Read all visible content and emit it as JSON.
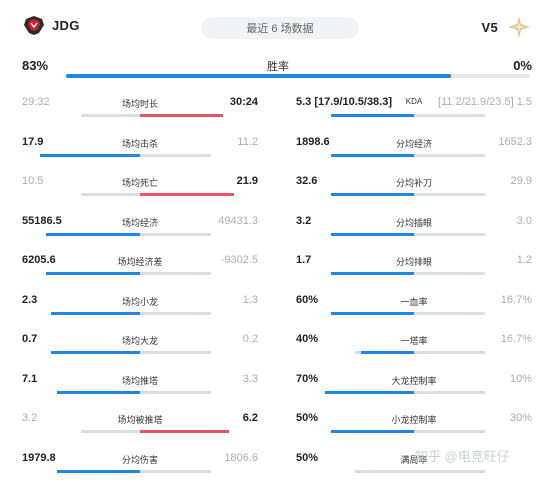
{
  "header": {
    "left_team": "JDG",
    "right_team": "V5",
    "period": "最近 6 场数据"
  },
  "winrate": {
    "left": "83%",
    "label": "胜率",
    "right": "0%",
    "left_fraction": 0.83
  },
  "colors": {
    "accent_blue": "#1f86e6",
    "accent_red": "#e85466",
    "track": "#dadde2"
  },
  "left_stats": [
    {
      "label": "场均时长",
      "left": "29:32",
      "right": "30:24",
      "bar_left": 0.0,
      "bar_right": 0.7,
      "right_color": "red",
      "left_muted": true,
      "right_muted": false
    },
    {
      "label": "场均击杀",
      "left": "17.9",
      "right": "11.2",
      "bar_left": 0.85,
      "bar_right": 0.0,
      "left_muted": false,
      "right_muted": true
    },
    {
      "label": "场均死亡",
      "left": "10.5",
      "right": "21.9",
      "bar_left": 0.0,
      "bar_right": 0.8,
      "right_color": "red",
      "left_muted": true,
      "right_muted": false
    },
    {
      "label": "场均经济",
      "left": "55186.5",
      "right": "49431.3",
      "bar_left": 0.8,
      "bar_right": 0.0,
      "left_muted": false,
      "right_muted": true
    },
    {
      "label": "场均经济差",
      "left": "6205.6",
      "right": "-9302.5",
      "bar_left": 0.8,
      "bar_right": 0.0,
      "left_muted": false,
      "right_muted": true
    },
    {
      "label": "场均小龙",
      "left": "2.3",
      "right": "1.3",
      "bar_left": 0.75,
      "bar_right": 0.0,
      "left_muted": false,
      "right_muted": true
    },
    {
      "label": "场均大龙",
      "left": "0.7",
      "right": "0.2",
      "bar_left": 0.75,
      "bar_right": 0.0,
      "left_muted": false,
      "right_muted": true
    },
    {
      "label": "场均推塔",
      "left": "7.1",
      "right": "3.3",
      "bar_left": 0.7,
      "bar_right": 0.0,
      "left_muted": false,
      "right_muted": true
    },
    {
      "label": "场均被推塔",
      "left": "3.2",
      "right": "6.2",
      "bar_left": 0.0,
      "bar_right": 0.75,
      "right_color": "red",
      "left_muted": true,
      "right_muted": false
    },
    {
      "label": "分均伤害",
      "left": "1979.8",
      "right": "1806.6",
      "bar_left": 0.7,
      "bar_right": 0.0,
      "left_muted": false,
      "right_muted": true
    }
  ],
  "right_stats": [
    {
      "label": "KDA",
      "left": "5.3 [17.9/10.5/38.3]",
      "right": "[11.2/21.9/23.5] 1.5",
      "bar_left": 0.7,
      "bar_right": 0.0,
      "left_muted": false,
      "right_muted": true
    },
    {
      "label": "分均经济",
      "left": "1898.6",
      "right": "1652.3",
      "bar_left": 0.7,
      "bar_right": 0.0,
      "left_muted": false,
      "right_muted": true
    },
    {
      "label": "分均补刀",
      "left": "32.6",
      "right": "29.9",
      "bar_left": 0.7,
      "bar_right": 0.0,
      "left_muted": false,
      "right_muted": true
    },
    {
      "label": "分均插眼",
      "left": "3.2",
      "right": "3.0",
      "bar_left": 0.7,
      "bar_right": 0.0,
      "left_muted": false,
      "right_muted": true
    },
    {
      "label": "分均排眼",
      "left": "1.7",
      "right": "1.2",
      "bar_left": 0.7,
      "bar_right": 0.0,
      "left_muted": false,
      "right_muted": true
    },
    {
      "label": "一血率",
      "left": "60%",
      "right": "16.7%",
      "bar_left": 0.7,
      "bar_right": 0.0,
      "left_muted": false,
      "right_muted": true
    },
    {
      "label": "一塔率",
      "left": "40%",
      "right": "16.7%",
      "bar_left": 0.45,
      "bar_right": 0.0,
      "left_muted": false,
      "right_muted": true
    },
    {
      "label": "大龙控制率",
      "left": "70%",
      "right": "10%",
      "bar_left": 0.75,
      "bar_right": 0.0,
      "left_muted": false,
      "right_muted": true
    },
    {
      "label": "小龙控制率",
      "left": "50%",
      "right": "30%",
      "bar_left": 0.7,
      "bar_right": 0.0,
      "left_muted": false,
      "right_muted": true
    },
    {
      "label": "满局率",
      "left": "50%",
      "right": "",
      "bar_left": 0.0,
      "bar_right": 0.0,
      "left_muted": false,
      "right_muted": true
    }
  ],
  "watermark": "知乎 @电竞旺仔"
}
